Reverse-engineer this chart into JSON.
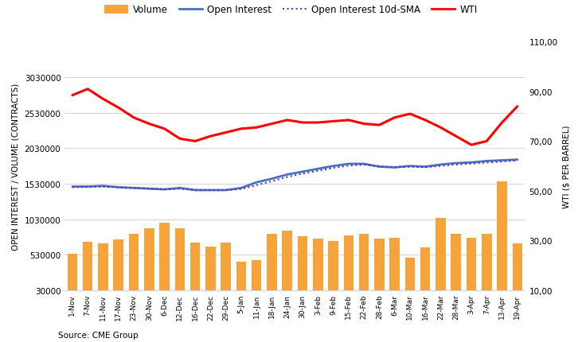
{
  "x_labels": [
    "1-Nov",
    "7-Nov",
    "11-Nov",
    "17-Nov",
    "23-Nov",
    "30-Nov",
    "6-Dec",
    "12-Dec",
    "16-Dec",
    "22-Dec",
    "29-Dec",
    "5-Jan",
    "11-Jan",
    "18-Jan",
    "24-Jan",
    "30-Jan",
    "3-Feb",
    "9-Feb",
    "15-Feb",
    "22-Feb",
    "28-Feb",
    "6-Mar",
    "10-Mar",
    "16-Mar",
    "22-Mar",
    "28-Mar",
    "3-Apr",
    "7-Apr",
    "13-Apr",
    "19-Apr"
  ],
  "volume": [
    540000,
    710000,
    690000,
    740000,
    820000,
    900000,
    980000,
    900000,
    700000,
    640000,
    700000,
    430000,
    450000,
    820000,
    870000,
    790000,
    760000,
    720000,
    800000,
    820000,
    760000,
    770000,
    490000,
    630000,
    1050000,
    820000,
    770000,
    820000,
    1560000,
    690000
  ],
  "open_interest": [
    1490000,
    1490000,
    1500000,
    1480000,
    1470000,
    1460000,
    1450000,
    1470000,
    1440000,
    1440000,
    1440000,
    1470000,
    1550000,
    1600000,
    1660000,
    1700000,
    1740000,
    1780000,
    1810000,
    1810000,
    1770000,
    1760000,
    1780000,
    1770000,
    1800000,
    1820000,
    1830000,
    1850000,
    1860000,
    1870000
  ],
  "open_interest_sma": [
    1480000,
    1485000,
    1488000,
    1482000,
    1472000,
    1462000,
    1452000,
    1458000,
    1442000,
    1440000,
    1440000,
    1455000,
    1510000,
    1565000,
    1625000,
    1672000,
    1712000,
    1752000,
    1785000,
    1798000,
    1778000,
    1762000,
    1768000,
    1762000,
    1780000,
    1800000,
    1812000,
    1828000,
    1842000,
    1858000
  ],
  "wti": [
    88.5,
    91.0,
    87.0,
    83.5,
    79.5,
    77.0,
    75.0,
    71.0,
    70.0,
    72.0,
    73.5,
    75.0,
    75.5,
    77.0,
    78.5,
    77.5,
    77.5,
    78.0,
    78.5,
    77.0,
    76.5,
    79.5,
    81.0,
    78.5,
    75.5,
    72.0,
    68.5,
    70.0,
    77.5,
    84.0
  ],
  "volume_color": "#F4A43A",
  "open_interest_color": "#4472C4",
  "sma_color": "#7030A0",
  "wti_color": "#FF0000",
  "left_ylabel": "OPEN INTEREST / VOLUME (CONTRACTS)",
  "right_ylabel": "WTI ($ PER BARREL)",
  "source_text": "Source: CME Group",
  "ylim_left": [
    30000,
    3530000
  ],
  "ylim_right": [
    10,
    110
  ],
  "left_yticks": [
    30000,
    530000,
    1030000,
    1530000,
    2030000,
    2530000,
    3030000
  ],
  "right_yticks": [
    10.0,
    30.0,
    50.0,
    70.0,
    90.0,
    110.0
  ],
  "right_ytick_labels": [
    "10,00",
    "30,00",
    "50,00",
    "70,00",
    "90,00",
    "110,00"
  ],
  "left_ytick_labels": [
    "30000",
    "530000",
    "1030000",
    "1530000",
    "2030000",
    "2530000",
    "3030000"
  ],
  "background_color": "#FFFFFF",
  "grid_color": "#CCCCCC",
  "figsize": [
    7.31,
    4.31
  ],
  "dpi": 100
}
